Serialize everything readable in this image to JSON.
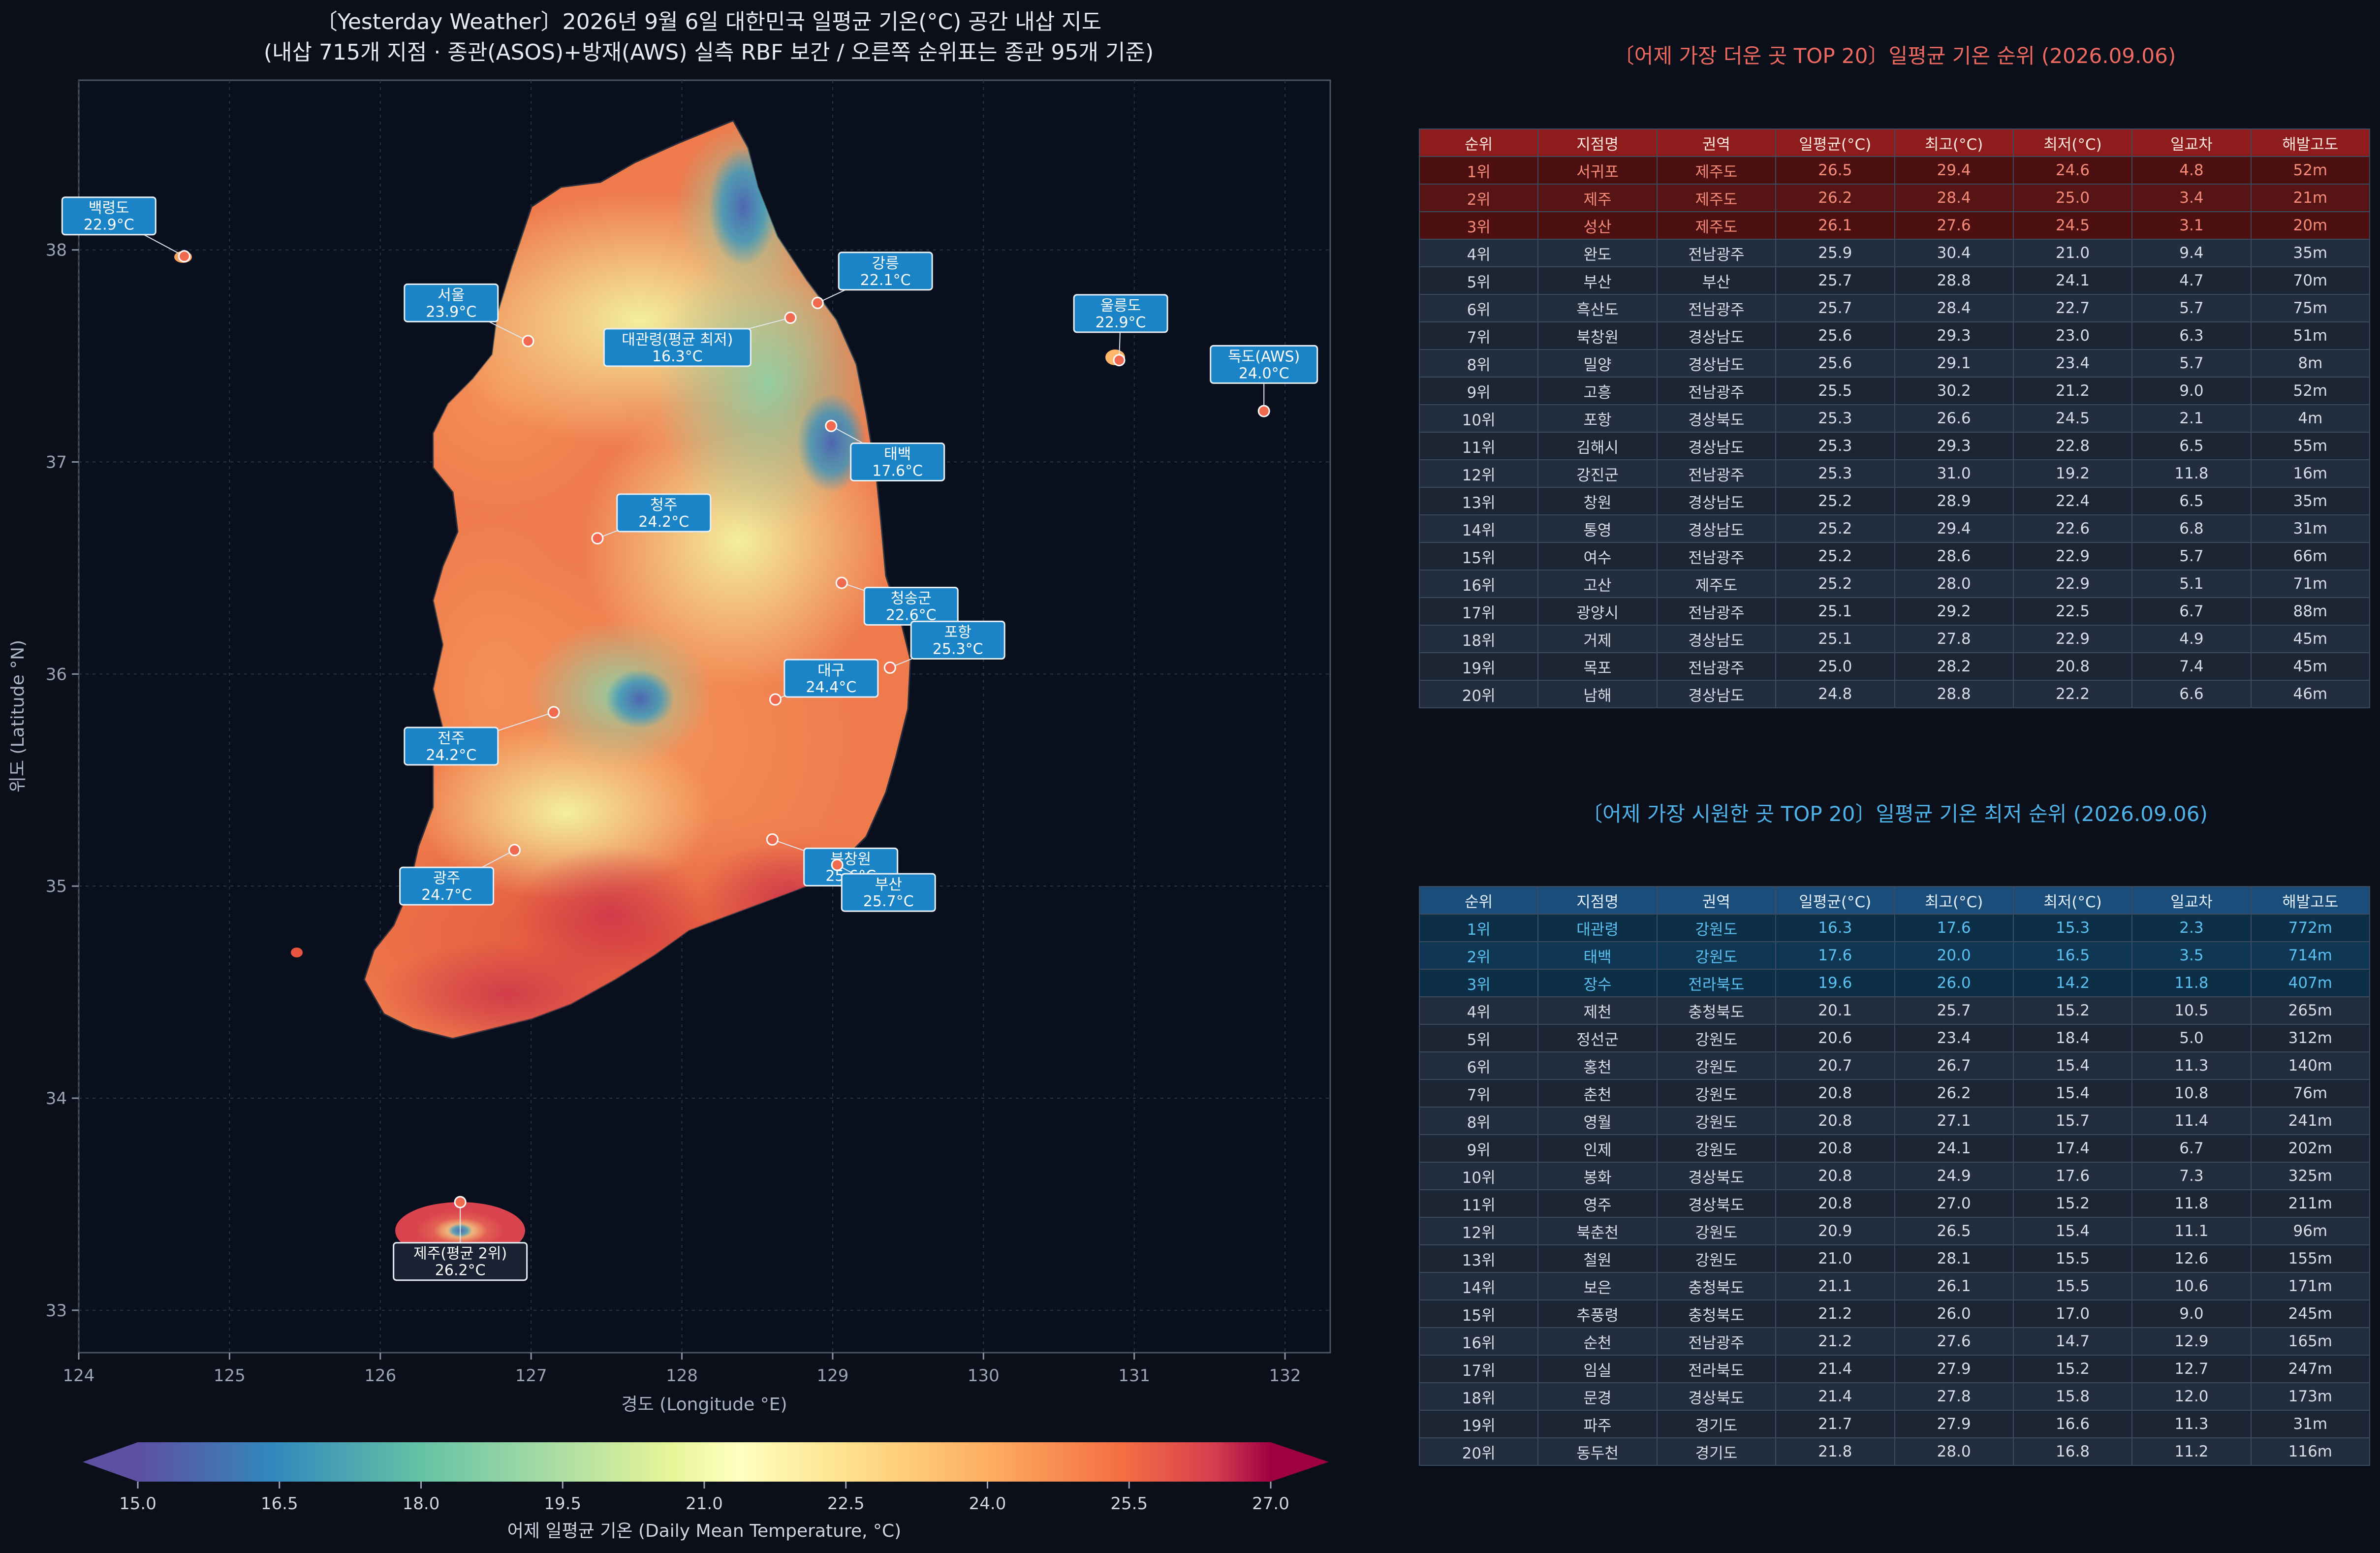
{
  "title": {
    "line1": "〔Yesterday Weather〕2026년 9월 6일 대한민국 일평균 기온(°C) 공간 내삽 지도",
    "line2": "(내삽 715개 지점 · 종관(ASOS)+방재(AWS) 실측 RBF 보간 / 오른쪽 순위표는 종관 95개 기준)"
  },
  "chart_data": [
    {
      "type": "heatmap",
      "xlabel": "경도 (Longitude °E)",
      "ylabel": "위도 (Latitude °N)",
      "xlim": [
        124,
        132.3
      ],
      "ylim": [
        32.8,
        38.8
      ],
      "xticks": [
        124,
        125,
        126,
        127,
        128,
        129,
        130,
        131,
        132
      ],
      "yticks": [
        33,
        34,
        35,
        36,
        37,
        38
      ],
      "grid": true,
      "colorbar": {
        "label": "어제 일평균 기온 (Daily Mean Temperature, °C)",
        "min": 15.0,
        "max": 27.0,
        "ticks": [
          "15.0",
          "16.5",
          "18.0",
          "19.5",
          "21.0",
          "22.5",
          "24.0",
          "25.5",
          "27.0"
        ],
        "colormap": "Spectral_r",
        "extend": "both"
      },
      "annotations": [
        {
          "name": "백령도",
          "value": "22.9°C",
          "lon": 124.7,
          "lat": 37.97,
          "lx": 124.2,
          "ly": 38.16
        },
        {
          "name": "서울",
          "value": "23.9°C",
          "lon": 126.98,
          "lat": 37.57,
          "lx": 126.47,
          "ly": 37.75
        },
        {
          "name": "대관령(평균 최저)",
          "value": "16.3°C",
          "lon": 128.72,
          "lat": 37.68,
          "lx": 127.97,
          "ly": 37.54
        },
        {
          "name": "강릉",
          "value": "22.1°C",
          "lon": 128.9,
          "lat": 37.75,
          "lx": 129.35,
          "ly": 37.9
        },
        {
          "name": "울릉도",
          "value": "22.9°C",
          "lon": 130.9,
          "lat": 37.48,
          "lx": 130.91,
          "ly": 37.7
        },
        {
          "name": "독도(AWS)",
          "value": "24.0°C",
          "lon": 131.86,
          "lat": 37.24,
          "lx": 131.86,
          "ly": 37.46
        },
        {
          "name": "태백",
          "value": "17.6°C",
          "lon": 128.99,
          "lat": 37.17,
          "lx": 129.43,
          "ly": 37.0
        },
        {
          "name": "청주",
          "value": "24.2°C",
          "lon": 127.44,
          "lat": 36.64,
          "lx": 127.88,
          "ly": 36.76
        },
        {
          "name": "청송군",
          "value": "22.6°C",
          "lon": 129.06,
          "lat": 36.43,
          "lx": 129.52,
          "ly": 36.32
        },
        {
          "name": "포항",
          "value": "25.3°C",
          "lon": 129.38,
          "lat": 36.03,
          "lx": 129.83,
          "ly": 36.16
        },
        {
          "name": "대구",
          "value": "24.4°C",
          "lon": 128.62,
          "lat": 35.88,
          "lx": 128.99,
          "ly": 35.98
        },
        {
          "name": "전주",
          "value": "24.2°C",
          "lon": 127.15,
          "lat": 35.82,
          "lx": 126.47,
          "ly": 35.66
        },
        {
          "name": "북창원",
          "value": "25.6°C",
          "lon": 128.6,
          "lat": 35.22,
          "lx": 129.12,
          "ly": 35.09
        },
        {
          "name": "광주",
          "value": "24.7°C",
          "lon": 126.89,
          "lat": 35.17,
          "lx": 126.44,
          "ly": 35.0
        },
        {
          "name": "부산",
          "value": "25.7°C",
          "lon": 129.03,
          "lat": 35.1,
          "lx": 129.37,
          "ly": 34.97
        },
        {
          "name": "제주(평균 2위)",
          "value": "26.2°C",
          "lon": 126.53,
          "lat": 33.51,
          "lx": 126.53,
          "ly": 33.23
        }
      ]
    },
    {
      "type": "table",
      "title": "〔어제 가장 더운 곳 TOP 20〕일평균 기온 순위 (2026.09.06)",
      "columns": [
        "순위",
        "지점명",
        "권역",
        "일평균(°C)",
        "최고(°C)",
        "최저(°C)",
        "일교차",
        "해발고도"
      ],
      "rows": [
        [
          "1위",
          "서귀포",
          "제주도",
          "26.5",
          "29.4",
          "24.6",
          "4.8",
          "52m"
        ],
        [
          "2위",
          "제주",
          "제주도",
          "26.2",
          "28.4",
          "25.0",
          "3.4",
          "21m"
        ],
        [
          "3위",
          "성산",
          "제주도",
          "26.1",
          "27.6",
          "24.5",
          "3.1",
          "20m"
        ],
        [
          "4위",
          "완도",
          "전남광주",
          "25.9",
          "30.4",
          "21.0",
          "9.4",
          "35m"
        ],
        [
          "5위",
          "부산",
          "부산",
          "25.7",
          "28.8",
          "24.1",
          "4.7",
          "70m"
        ],
        [
          "6위",
          "흑산도",
          "전남광주",
          "25.7",
          "28.4",
          "22.7",
          "5.7",
          "75m"
        ],
        [
          "7위",
          "북창원",
          "경상남도",
          "25.6",
          "29.3",
          "23.0",
          "6.3",
          "51m"
        ],
        [
          "8위",
          "밀양",
          "경상남도",
          "25.6",
          "29.1",
          "23.4",
          "5.7",
          "8m"
        ],
        [
          "9위",
          "고흥",
          "전남광주",
          "25.5",
          "30.2",
          "21.2",
          "9.0",
          "52m"
        ],
        [
          "10위",
          "포항",
          "경상북도",
          "25.3",
          "26.6",
          "24.5",
          "2.1",
          "4m"
        ],
        [
          "11위",
          "김해시",
          "경상남도",
          "25.3",
          "29.3",
          "22.8",
          "6.5",
          "55m"
        ],
        [
          "12위",
          "강진군",
          "전남광주",
          "25.3",
          "31.0",
          "19.2",
          "11.8",
          "16m"
        ],
        [
          "13위",
          "창원",
          "경상남도",
          "25.2",
          "28.9",
          "22.4",
          "6.5",
          "35m"
        ],
        [
          "14위",
          "통영",
          "경상남도",
          "25.2",
          "29.4",
          "22.6",
          "6.8",
          "31m"
        ],
        [
          "15위",
          "여수",
          "전남광주",
          "25.2",
          "28.6",
          "22.9",
          "5.7",
          "66m"
        ],
        [
          "16위",
          "고산",
          "제주도",
          "25.2",
          "28.0",
          "22.9",
          "5.1",
          "71m"
        ],
        [
          "17위",
          "광양시",
          "전남광주",
          "25.1",
          "29.2",
          "22.5",
          "6.7",
          "88m"
        ],
        [
          "18위",
          "거제",
          "경상남도",
          "25.1",
          "27.8",
          "22.9",
          "4.9",
          "45m"
        ],
        [
          "19위",
          "목포",
          "전남광주",
          "25.0",
          "28.2",
          "20.8",
          "7.4",
          "45m"
        ],
        [
          "20위",
          "남해",
          "경상남도",
          "24.8",
          "28.8",
          "22.2",
          "6.6",
          "46m"
        ]
      ]
    },
    {
      "type": "table",
      "title": "〔어제 가장 시원한 곳 TOP 20〕일평균 기온 최저 순위 (2026.09.06)",
      "columns": [
        "순위",
        "지점명",
        "권역",
        "일평균(°C)",
        "최고(°C)",
        "최저(°C)",
        "일교차",
        "해발고도"
      ],
      "rows": [
        [
          "1위",
          "대관령",
          "강원도",
          "16.3",
          "17.6",
          "15.3",
          "2.3",
          "772m"
        ],
        [
          "2위",
          "태백",
          "강원도",
          "17.6",
          "20.0",
          "16.5",
          "3.5",
          "714m"
        ],
        [
          "3위",
          "장수",
          "전라북도",
          "19.6",
          "26.0",
          "14.2",
          "11.8",
          "407m"
        ],
        [
          "4위",
          "제천",
          "충청북도",
          "20.1",
          "25.7",
          "15.2",
          "10.5",
          "265m"
        ],
        [
          "5위",
          "정선군",
          "강원도",
          "20.6",
          "23.4",
          "18.4",
          "5.0",
          "312m"
        ],
        [
          "6위",
          "홍천",
          "강원도",
          "20.7",
          "26.7",
          "15.4",
          "11.3",
          "140m"
        ],
        [
          "7위",
          "춘천",
          "강원도",
          "20.8",
          "26.2",
          "15.4",
          "10.8",
          "76m"
        ],
        [
          "8위",
          "영월",
          "강원도",
          "20.8",
          "27.1",
          "15.7",
          "11.4",
          "241m"
        ],
        [
          "9위",
          "인제",
          "강원도",
          "20.8",
          "24.1",
          "17.4",
          "6.7",
          "202m"
        ],
        [
          "10위",
          "봉화",
          "경상북도",
          "20.8",
          "24.9",
          "17.6",
          "7.3",
          "325m"
        ],
        [
          "11위",
          "영주",
          "경상북도",
          "20.8",
          "27.0",
          "15.2",
          "11.8",
          "211m"
        ],
        [
          "12위",
          "북춘천",
          "강원도",
          "20.9",
          "26.5",
          "15.4",
          "11.1",
          "96m"
        ],
        [
          "13위",
          "철원",
          "강원도",
          "21.0",
          "28.1",
          "15.5",
          "12.6",
          "155m"
        ],
        [
          "14위",
          "보은",
          "충청북도",
          "21.1",
          "26.1",
          "15.5",
          "10.6",
          "171m"
        ],
        [
          "15위",
          "추풍령",
          "충청북도",
          "21.2",
          "26.0",
          "17.0",
          "9.0",
          "245m"
        ],
        [
          "16위",
          "순천",
          "전남광주",
          "21.2",
          "27.6",
          "14.7",
          "12.9",
          "165m"
        ],
        [
          "17위",
          "임실",
          "전라북도",
          "21.4",
          "27.9",
          "15.2",
          "12.7",
          "247m"
        ],
        [
          "18위",
          "문경",
          "경상북도",
          "21.4",
          "27.8",
          "15.8",
          "12.0",
          "173m"
        ],
        [
          "19위",
          "파주",
          "경기도",
          "21.7",
          "27.9",
          "16.6",
          "11.3",
          "31m"
        ],
        [
          "20위",
          "동두천",
          "경기도",
          "21.8",
          "28.0",
          "16.8",
          "11.2",
          "116m"
        ]
      ]
    }
  ]
}
